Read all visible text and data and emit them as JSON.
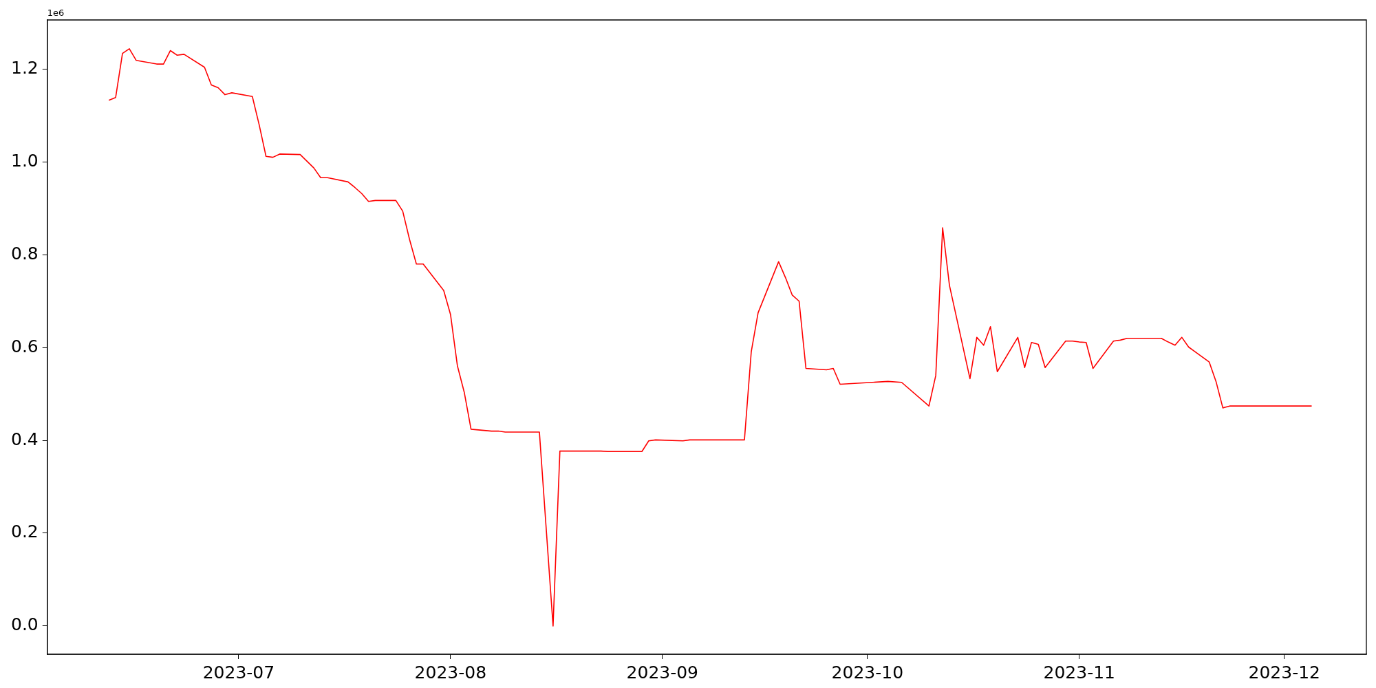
{
  "chart_data": {
    "type": "line",
    "grid": false,
    "legend": false,
    "marker": "none",
    "line_style": "solid",
    "annotations": [
      "1e6"
    ],
    "xlim": [
      "2023-06-03",
      "2023-12-13"
    ],
    "xticks": [
      {
        "value": "2023-07-01",
        "label": "2023-07"
      },
      {
        "value": "2023-08-01",
        "label": "2023-08"
      },
      {
        "value": "2023-09-01",
        "label": "2023-09"
      },
      {
        "value": "2023-10-01",
        "label": "2023-10"
      },
      {
        "value": "2023-11-01",
        "label": "2023-11"
      },
      {
        "value": "2023-12-01",
        "label": "2023-12"
      }
    ],
    "ylim": [
      -0.061,
      1.306
    ],
    "yticks": [
      {
        "value": 0,
        "label": "0.0"
      },
      0.2,
      0.4,
      0.6,
      0.8,
      {
        "value": 1,
        "label": "1.0"
      },
      1.2
    ],
    "series": [
      {
        "color": "#ff0000",
        "x": [
          "2023-06-12",
          "2023-06-13",
          "2023-06-14",
          "2023-06-15",
          "2023-06-16",
          "2023-06-19",
          "2023-06-20",
          "2023-06-21",
          "2023-06-22",
          "2023-06-23",
          "2023-06-26",
          "2023-06-27",
          "2023-06-28",
          "2023-06-29",
          "2023-06-30",
          "2023-07-03",
          "2023-07-04",
          "2023-07-05",
          "2023-07-06",
          "2023-07-07",
          "2023-07-10",
          "2023-07-12",
          "2023-07-13",
          "2023-07-14",
          "2023-07-17",
          "2023-07-18",
          "2023-07-19",
          "2023-07-20",
          "2023-07-21",
          "2023-07-24",
          "2023-07-25",
          "2023-07-26",
          "2023-07-27",
          "2023-07-28",
          "2023-07-31",
          "2023-08-01",
          "2023-08-02",
          "2023-08-03",
          "2023-08-04",
          "2023-08-07",
          "2023-08-08",
          "2023-08-09",
          "2023-08-14",
          "2023-08-16",
          "2023-08-17",
          "2023-08-23",
          "2023-08-24",
          "2023-08-29",
          "2023-08-30",
          "2023-08-31",
          "2023-09-04",
          "2023-09-05",
          "2023-09-13",
          "2023-09-14",
          "2023-09-15",
          "2023-09-18",
          "2023-09-19",
          "2023-09-20",
          "2023-09-21",
          "2023-09-22",
          "2023-09-25",
          "2023-09-26",
          "2023-09-27",
          "2023-10-04",
          "2023-10-06",
          "2023-10-10",
          "2023-10-11",
          "2023-10-12",
          "2023-10-13",
          "2023-10-16",
          "2023-10-17",
          "2023-10-18",
          "2023-10-19",
          "2023-10-20",
          "2023-10-23",
          "2023-10-24",
          "2023-10-25",
          "2023-10-26",
          "2023-10-27",
          "2023-10-30",
          "2023-10-31",
          "2023-11-01",
          "2023-11-02",
          "2023-11-03",
          "2023-11-06",
          "2023-11-07",
          "2023-11-08",
          "2023-11-13",
          "2023-11-14",
          "2023-11-15",
          "2023-11-16",
          "2023-11-17",
          "2023-11-20",
          "2023-11-21",
          "2023-11-22",
          "2023-11-23",
          "2023-12-05"
        ],
        "values": [
          1.133,
          1.139,
          1.234,
          1.244,
          1.219,
          1.211,
          1.211,
          1.24,
          1.23,
          1.232,
          1.204,
          1.166,
          1.16,
          1.145,
          1.149,
          1.141,
          1.08,
          1.012,
          1.01,
          1.017,
          1.016,
          0.987,
          0.966,
          0.966,
          0.957,
          0.945,
          0.932,
          0.915,
          0.917,
          0.917,
          0.894,
          0.833,
          0.78,
          0.78,
          0.723,
          0.671,
          0.561,
          0.504,
          0.424,
          0.42,
          0.42,
          0.418,
          0.418,
          0,
          0.377,
          0.377,
          0.376,
          0.376,
          0.399,
          0.401,
          0.399,
          0.401,
          0.401,
          0.591,
          0.675,
          0.785,
          0.751,
          0.713,
          0.7,
          0.555,
          0.552,
          0.555,
          0.521,
          0.527,
          0.525,
          0.474,
          0.54,
          0.858,
          0.734,
          0.533,
          0.622,
          0.605,
          0.645,
          0.548,
          0.622,
          0.557,
          0.611,
          0.607,
          0.557,
          0.614,
          0.614,
          0.612,
          0.611,
          0.555,
          0.614,
          0.616,
          0.62,
          0.62,
          0.612,
          0.605,
          0.622,
          0.601,
          0.569,
          0.527,
          0.47,
          0.474,
          0.474
        ]
      }
    ]
  }
}
